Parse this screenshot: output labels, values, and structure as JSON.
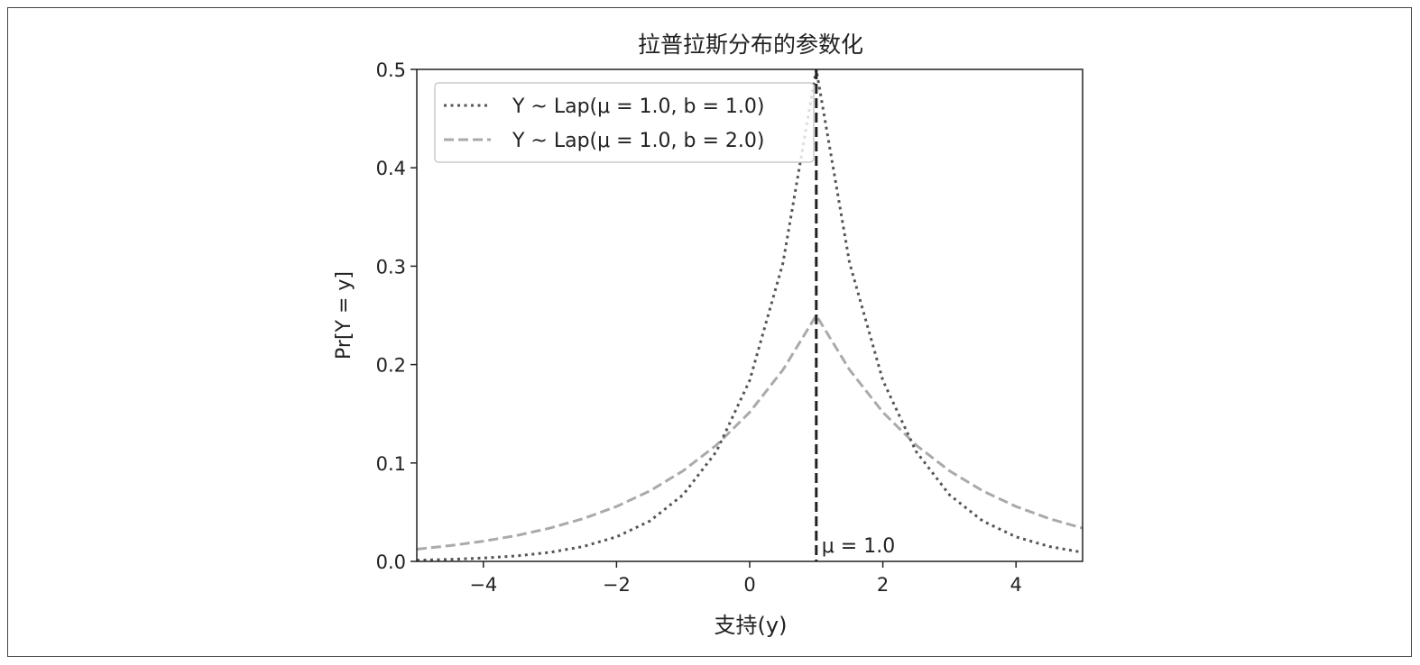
{
  "chart_data": {
    "type": "line",
    "title": "拉普拉斯分布的参数化",
    "xlabel": "支持(y)",
    "ylabel": "Pr[Y = y]",
    "xlim": [
      -5,
      5
    ],
    "ylim": [
      0,
      0.5
    ],
    "xticks": [
      -4,
      -2,
      0,
      2,
      4
    ],
    "xtick_labels": [
      "−4",
      "−2",
      "0",
      "2",
      "4"
    ],
    "yticks": [
      0.0,
      0.1,
      0.2,
      0.3,
      0.4,
      0.5
    ],
    "ytick_labels": [
      "0.0",
      "0.1",
      "0.2",
      "0.3",
      "0.4",
      "0.5"
    ],
    "grid": false,
    "legend_placement": "top-left",
    "x": [
      -5,
      -4.5,
      -4,
      -3.5,
      -3,
      -2.5,
      -2,
      -1.5,
      -1,
      -0.5,
      0,
      0.5,
      1,
      1.5,
      2,
      2.5,
      3,
      3.5,
      4,
      4.5,
      5
    ],
    "series": [
      {
        "name": "Y ~ Lap(μ = 1.0, b = 1.0)",
        "style": "dotted",
        "color": "#555555",
        "values": [
          0.0012,
          0.002,
          0.0034,
          0.0056,
          0.0092,
          0.0151,
          0.0249,
          0.041,
          0.0677,
          0.1116,
          0.1839,
          0.3033,
          0.5,
          0.3033,
          0.1839,
          0.1116,
          0.0677,
          0.041,
          0.0249,
          0.0151,
          0.0092
        ]
      },
      {
        "name": "Y ~ Lap(μ = 1.0, b = 2.0)",
        "style": "dashed",
        "color": "#aaaaaa",
        "values": [
          0.0124,
          0.016,
          0.0205,
          0.0263,
          0.0338,
          0.0434,
          0.0558,
          0.0716,
          0.092,
          0.1181,
          0.1516,
          0.1947,
          0.25,
          0.1947,
          0.1516,
          0.1181,
          0.092,
          0.0716,
          0.0558,
          0.0434,
          0.0338
        ]
      }
    ],
    "vline": {
      "x": 1.0,
      "label": "μ = 1.0",
      "color": "#222222"
    }
  }
}
